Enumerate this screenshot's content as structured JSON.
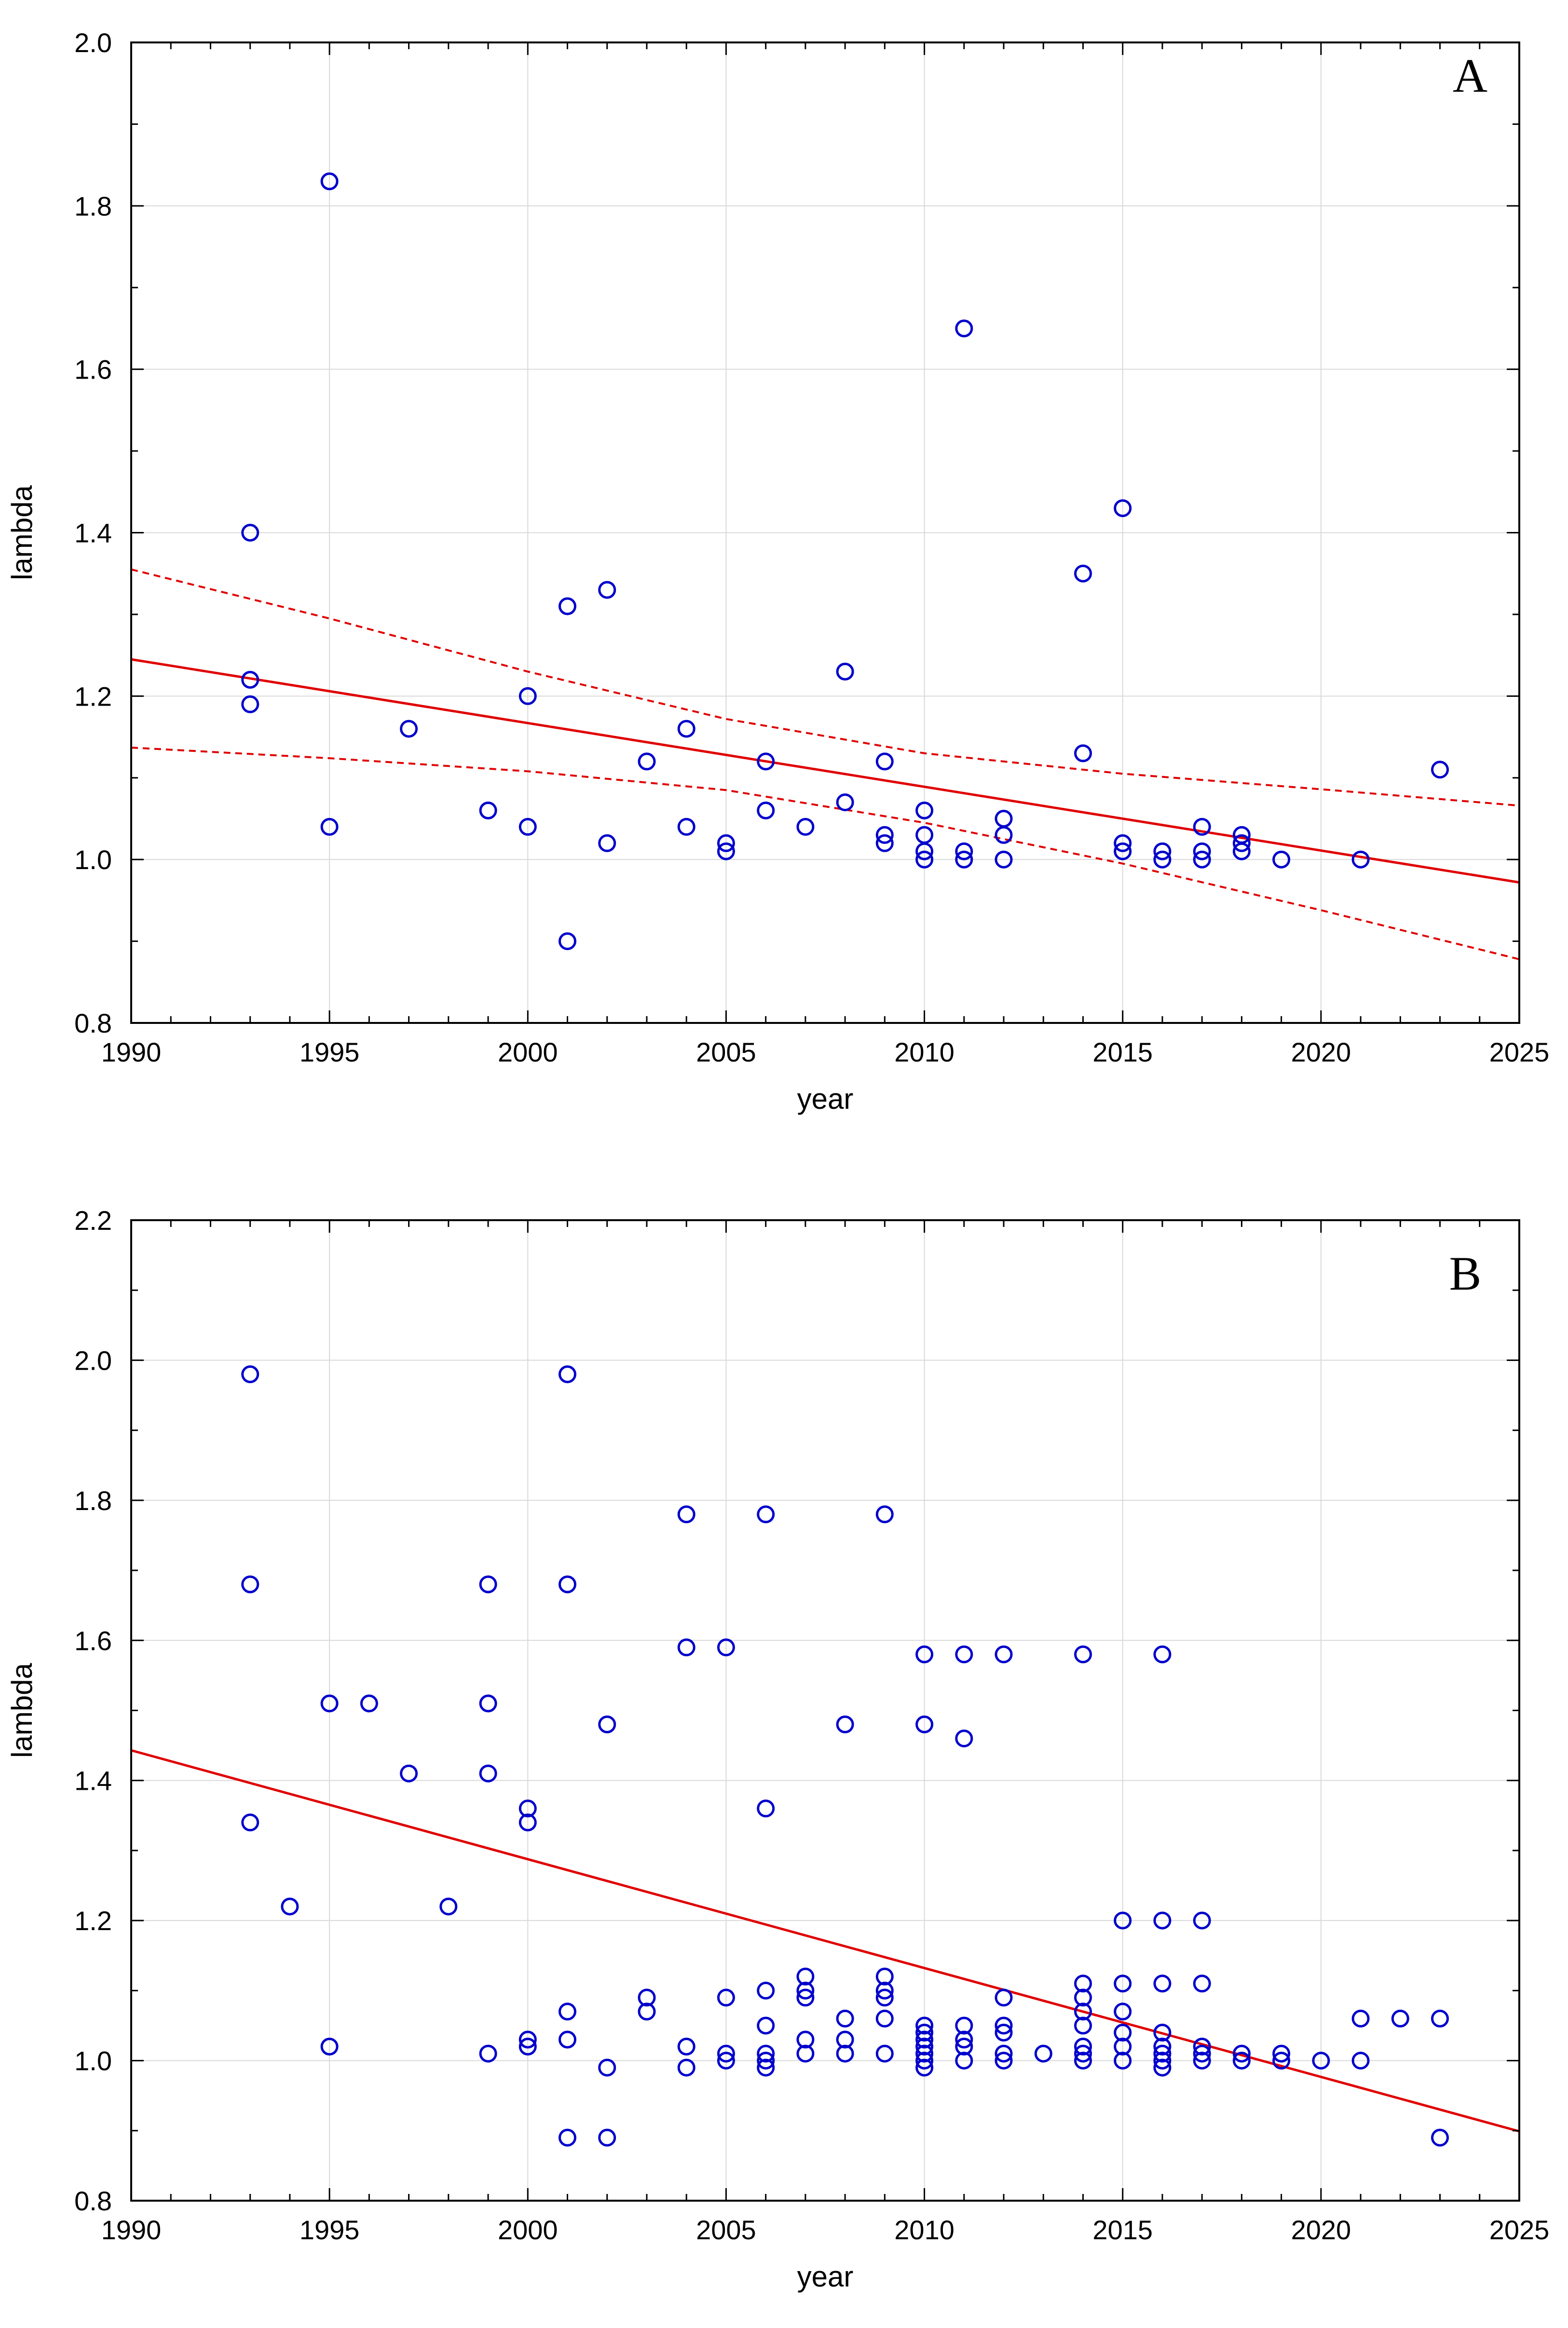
{
  "chart_data": [
    {
      "type": "scatter",
      "panel_label": "A",
      "xlabel": "year",
      "ylabel": "lambda",
      "xlim": [
        1990,
        2025
      ],
      "ylim": [
        0.8,
        2.0
      ],
      "xticks": [
        1990,
        1995,
        2000,
        2005,
        2010,
        2015,
        2020,
        2025
      ],
      "yticks": [
        0.8,
        1.0,
        1.2,
        1.4,
        1.6,
        1.8,
        2.0
      ],
      "ytick_labels": [
        "0.8",
        "1.0",
        "1.2",
        "1.4",
        "1.6",
        "1.8",
        "2.0"
      ],
      "grid": true,
      "points": [
        [
          1993,
          1.4
        ],
        [
          1993,
          1.22
        ],
        [
          1993,
          1.19
        ],
        [
          1995,
          1.83
        ],
        [
          1995,
          1.04
        ],
        [
          1997,
          1.16
        ],
        [
          1999,
          1.06
        ],
        [
          2000,
          1.2
        ],
        [
          2000,
          1.04
        ],
        [
          2001,
          1.31
        ],
        [
          2001,
          0.9
        ],
        [
          2002,
          1.33
        ],
        [
          2002,
          1.02
        ],
        [
          2003,
          1.12
        ],
        [
          2004,
          1.16
        ],
        [
          2004,
          1.04
        ],
        [
          2005,
          1.02
        ],
        [
          2005,
          1.01
        ],
        [
          2006,
          1.12
        ],
        [
          2006,
          1.06
        ],
        [
          2007,
          1.04
        ],
        [
          2008,
          1.23
        ],
        [
          2008,
          1.07
        ],
        [
          2009,
          1.12
        ],
        [
          2009,
          1.03
        ],
        [
          2009,
          1.02
        ],
        [
          2010,
          1.06
        ],
        [
          2010,
          1.03
        ],
        [
          2010,
          1.01
        ],
        [
          2010,
          1.0
        ],
        [
          2011,
          1.65
        ],
        [
          2011,
          1.01
        ],
        [
          2011,
          1.0
        ],
        [
          2012,
          1.05
        ],
        [
          2012,
          1.03
        ],
        [
          2012,
          1.0
        ],
        [
          2014,
          1.35
        ],
        [
          2014,
          1.13
        ],
        [
          2015,
          1.43
        ],
        [
          2015,
          1.02
        ],
        [
          2015,
          1.01
        ],
        [
          2016,
          1.01
        ],
        [
          2016,
          1.0
        ],
        [
          2017,
          1.04
        ],
        [
          2017,
          1.01
        ],
        [
          2017,
          1.0
        ],
        [
          2018,
          1.03
        ],
        [
          2018,
          1.02
        ],
        [
          2018,
          1.01
        ],
        [
          2019,
          1.0
        ],
        [
          2021,
          1.0
        ],
        [
          2023,
          1.11
        ]
      ],
      "fit_line": [
        [
          1990,
          1.245
        ],
        [
          2025,
          0.972
        ]
      ],
      "ci_upper": [
        [
          1990,
          1.355
        ],
        [
          1995,
          1.295
        ],
        [
          2000,
          1.23
        ],
        [
          2005,
          1.172
        ],
        [
          2010,
          1.13
        ],
        [
          2015,
          1.105
        ],
        [
          2020,
          1.086
        ],
        [
          2025,
          1.066
        ]
      ],
      "ci_lower": [
        [
          1990,
          1.137
        ],
        [
          1995,
          1.124
        ],
        [
          2000,
          1.108
        ],
        [
          2005,
          1.085
        ],
        [
          2010,
          1.045
        ],
        [
          2015,
          0.995
        ],
        [
          2020,
          0.938
        ],
        [
          2025,
          0.878
        ]
      ]
    },
    {
      "type": "scatter",
      "panel_label": "B",
      "xlabel": "year",
      "ylabel": "lambda",
      "xlim": [
        1990,
        2025
      ],
      "ylim": [
        0.8,
        2.2
      ],
      "xticks": [
        1990,
        1995,
        2000,
        2005,
        2010,
        2015,
        2020,
        2025
      ],
      "yticks": [
        0.8,
        1.0,
        1.2,
        1.4,
        1.6,
        1.8,
        2.0,
        2.2
      ],
      "ytick_labels": [
        "0.8",
        "1.0",
        "1.2",
        "1.4",
        "1.6",
        "1.8",
        "2.0",
        "2.2"
      ],
      "grid": true,
      "points": [
        [
          1993,
          1.98
        ],
        [
          1993,
          1.68
        ],
        [
          1993,
          1.34
        ],
        [
          1994,
          1.22
        ],
        [
          1995,
          1.51
        ],
        [
          1995,
          1.02
        ],
        [
          1996,
          1.51
        ],
        [
          1997,
          1.41
        ],
        [
          1998,
          1.22
        ],
        [
          1999,
          1.68
        ],
        [
          1999,
          1.51
        ],
        [
          1999,
          1.41
        ],
        [
          1999,
          1.01
        ],
        [
          2000,
          1.36
        ],
        [
          2000,
          1.34
        ],
        [
          2000,
          1.03
        ],
        [
          2000,
          1.02
        ],
        [
          2001,
          1.98
        ],
        [
          2001,
          1.68
        ],
        [
          2001,
          1.07
        ],
        [
          2001,
          1.03
        ],
        [
          2001,
          0.89
        ],
        [
          2002,
          1.48
        ],
        [
          2002,
          0.99
        ],
        [
          2002,
          0.89
        ],
        [
          2003,
          1.09
        ],
        [
          2003,
          1.07
        ],
        [
          2004,
          1.78
        ],
        [
          2004,
          1.59
        ],
        [
          2004,
          1.02
        ],
        [
          2004,
          0.99
        ],
        [
          2005,
          1.59
        ],
        [
          2005,
          1.09
        ],
        [
          2005,
          1.01
        ],
        [
          2005,
          1.0
        ],
        [
          2006,
          1.78
        ],
        [
          2006,
          1.36
        ],
        [
          2006,
          1.1
        ],
        [
          2006,
          1.05
        ],
        [
          2006,
          1.01
        ],
        [
          2006,
          1.0
        ],
        [
          2006,
          0.99
        ],
        [
          2007,
          1.12
        ],
        [
          2007,
          1.1
        ],
        [
          2007,
          1.09
        ],
        [
          2007,
          1.03
        ],
        [
          2007,
          1.01
        ],
        [
          2008,
          1.48
        ],
        [
          2008,
          1.06
        ],
        [
          2008,
          1.03
        ],
        [
          2008,
          1.01
        ],
        [
          2009,
          1.78
        ],
        [
          2009,
          1.12
        ],
        [
          2009,
          1.1
        ],
        [
          2009,
          1.09
        ],
        [
          2009,
          1.06
        ],
        [
          2009,
          1.01
        ],
        [
          2010,
          1.58
        ],
        [
          2010,
          1.48
        ],
        [
          2010,
          1.05
        ],
        [
          2010,
          1.04
        ],
        [
          2010,
          1.03
        ],
        [
          2010,
          1.02
        ],
        [
          2010,
          1.01
        ],
        [
          2010,
          1.0
        ],
        [
          2010,
          0.99
        ],
        [
          2011,
          1.58
        ],
        [
          2011,
          1.46
        ],
        [
          2011,
          1.05
        ],
        [
          2011,
          1.03
        ],
        [
          2011,
          1.02
        ],
        [
          2011,
          1.0
        ],
        [
          2012,
          1.58
        ],
        [
          2012,
          1.09
        ],
        [
          2012,
          1.05
        ],
        [
          2012,
          1.04
        ],
        [
          2012,
          1.01
        ],
        [
          2012,
          1.0
        ],
        [
          2013,
          1.01
        ],
        [
          2014,
          1.58
        ],
        [
          2014,
          1.11
        ],
        [
          2014,
          1.09
        ],
        [
          2014,
          1.07
        ],
        [
          2014,
          1.05
        ],
        [
          2014,
          1.02
        ],
        [
          2014,
          1.01
        ],
        [
          2014,
          1.0
        ],
        [
          2015,
          1.2
        ],
        [
          2015,
          1.11
        ],
        [
          2015,
          1.07
        ],
        [
          2015,
          1.04
        ],
        [
          2015,
          1.02
        ],
        [
          2015,
          1.0
        ],
        [
          2016,
          1.58
        ],
        [
          2016,
          1.2
        ],
        [
          2016,
          1.11
        ],
        [
          2016,
          1.04
        ],
        [
          2016,
          1.02
        ],
        [
          2016,
          1.01
        ],
        [
          2016,
          1.0
        ],
        [
          2016,
          0.99
        ],
        [
          2017,
          1.2
        ],
        [
          2017,
          1.11
        ],
        [
          2017,
          1.02
        ],
        [
          2017,
          1.01
        ],
        [
          2017,
          1.0
        ],
        [
          2018,
          1.01
        ],
        [
          2018,
          1.0
        ],
        [
          2019,
          1.01
        ],
        [
          2019,
          1.0
        ],
        [
          2020,
          1.0
        ],
        [
          2021,
          1.06
        ],
        [
          2021,
          1.0
        ],
        [
          2022,
          1.06
        ],
        [
          2023,
          1.06
        ],
        [
          2023,
          0.89
        ]
      ],
      "fit_line": [
        [
          1990,
          1.443
        ],
        [
          2025,
          0.899
        ]
      ]
    }
  ]
}
